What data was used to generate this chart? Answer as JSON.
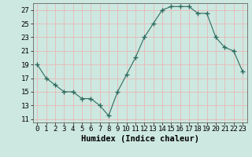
{
  "title": "",
  "xlabel": "Humidex (Indice chaleur)",
  "ylabel": "",
  "x": [
    0,
    1,
    2,
    3,
    4,
    5,
    6,
    7,
    8,
    9,
    10,
    11,
    12,
    13,
    14,
    15,
    16,
    17,
    18,
    19,
    20,
    21,
    22,
    23
  ],
  "y": [
    19,
    17,
    16,
    15,
    15,
    14,
    14,
    13,
    11.5,
    15,
    17.5,
    20,
    23,
    25,
    27,
    27.5,
    27.5,
    27.5,
    26.5,
    26.5,
    23,
    21.5,
    21,
    18
  ],
  "line_color": "#2e6b5e",
  "marker": "D",
  "marker_size": 2.0,
  "bg_color": "#cde8e0",
  "grid_color": "#e8b8b8",
  "axis_label_fontsize": 7.5,
  "tick_fontsize": 6.5,
  "ylim": [
    10.5,
    28
  ],
  "yticks": [
    11,
    13,
    15,
    17,
    19,
    21,
    23,
    25,
    27
  ],
  "xlim": [
    -0.5,
    23.5
  ]
}
